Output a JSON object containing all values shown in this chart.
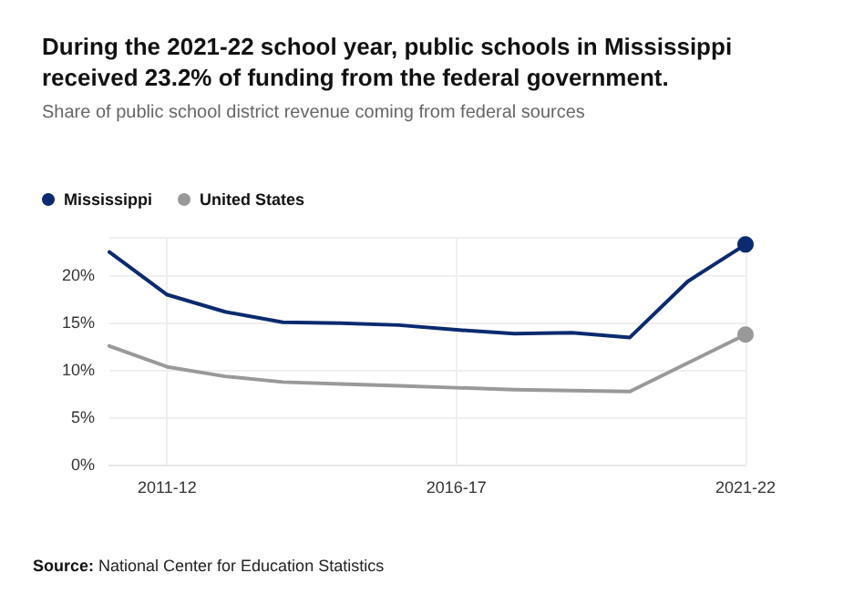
{
  "chart_data": {
    "type": "line",
    "title": "During the 2021-22 school year, public schools in Mississippi received 23.2% of funding from the federal government.",
    "subtitle": "Share of public school district revenue coming from federal sources",
    "categories": [
      null,
      "2011-12",
      null,
      null,
      null,
      null,
      "2016-17",
      null,
      null,
      null,
      null,
      "2021-22"
    ],
    "series": [
      {
        "name": "Mississippi",
        "color": "#0b2a6f",
        "values": [
          22.4,
          17.9,
          16.1,
          15.0,
          14.9,
          14.7,
          14.2,
          13.8,
          13.9,
          13.4,
          19.3,
          23.2
        ]
      },
      {
        "name": "United States",
        "color": "#999999",
        "values": [
          12.5,
          10.3,
          9.3,
          8.7,
          8.5,
          8.3,
          8.1,
          7.9,
          7.8,
          7.7,
          10.7,
          13.7
        ]
      }
    ],
    "ylim": [
      0,
      24
    ],
    "yticks": [
      {
        "value": 0,
        "label": "0%"
      },
      {
        "value": 5,
        "label": "5%"
      },
      {
        "value": 10,
        "label": "10%"
      },
      {
        "value": 15,
        "label": "15%"
      },
      {
        "value": 20,
        "label": "20%"
      }
    ],
    "grid": true,
    "legend": "top left",
    "line_style": "solid",
    "annotations": [
      "Source: National Center for Education Statistics"
    ]
  }
}
